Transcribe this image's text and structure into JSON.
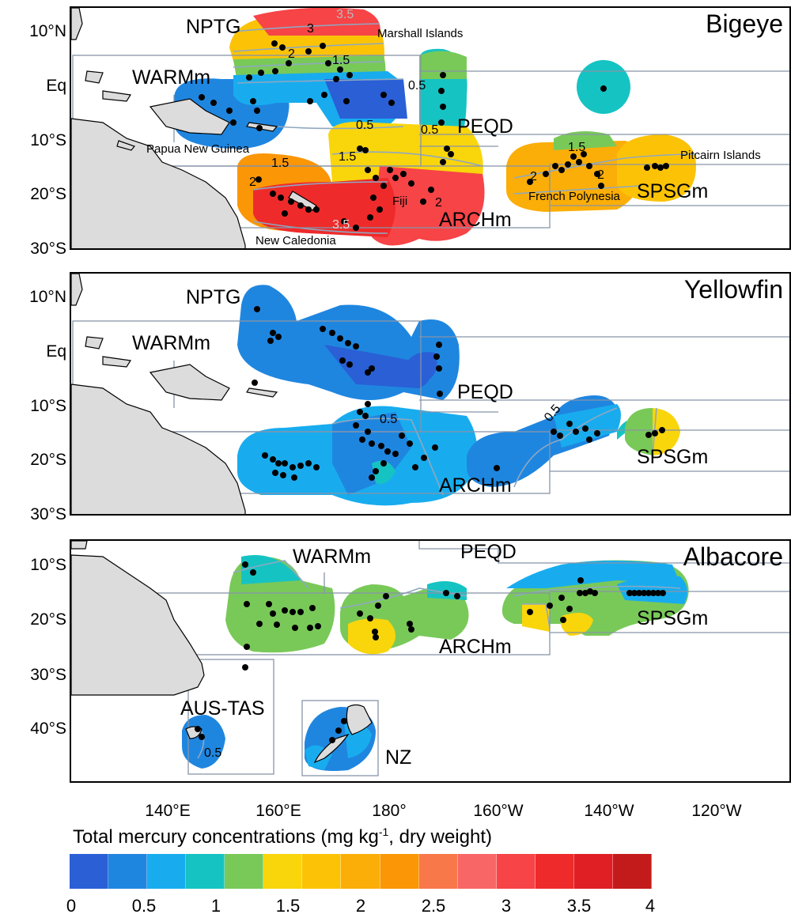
{
  "map": {
    "legend": {
      "title": "Total mercury concentrations (mg kg",
      "title_sup": "-1",
      "title_suffix": ", dry weight)",
      "ticks": [
        "0",
        "0.5",
        "1",
        "1.5",
        "2",
        "2.5",
        "3",
        "3.5",
        "4"
      ],
      "colors": [
        "#2a5fd6",
        "#1f86e0",
        "#18acef",
        "#16c3c3",
        "#79c959",
        "#f9d50c",
        "#fcc306",
        "#fbae08",
        "#fb9606",
        "#f9784a",
        "#f96666",
        "#f64447",
        "#ef2a2a",
        "#e01f24",
        "#c31b1b"
      ]
    },
    "x_ticks": [
      "140°E",
      "160°E",
      "180°",
      "160°W",
      "140°W",
      "120°W"
    ],
    "panels": [
      {
        "title": "Bigeye",
        "y_ticks": [
          "10°N",
          "Eq",
          "10°S",
          "20°S",
          "30°S"
        ],
        "regions": [
          "NPTG",
          "WARMm",
          "PEQD",
          "ARCHm",
          "SPSGm"
        ],
        "places": [
          "Marshall Islands",
          "Papua New Guinea",
          "Pitcairn Islands",
          "French Polynesia",
          "Fiji",
          "New Caledonia"
        ],
        "contour_labels": [
          "3.5",
          "3",
          "2",
          "1.5",
          "0.5",
          "0.5",
          "0.5",
          "1.5",
          "1.5",
          "1.5",
          "2",
          "2",
          "2",
          "2",
          "3.5"
        ]
      },
      {
        "title": "Yellowfin",
        "y_ticks": [
          "10°N",
          "Eq",
          "10°S",
          "20°S",
          "30°S"
        ],
        "regions": [
          "NPTG",
          "WARMm",
          "PEQD",
          "ARCHm",
          "SPSGm"
        ],
        "contour_labels": [
          "0.5",
          "0.5"
        ]
      },
      {
        "title": "Albacore",
        "y_ticks": [
          "10°S",
          "20°S",
          "30°S",
          "40°S"
        ],
        "regions": [
          "WARMm",
          "PEQD",
          "ARCHm",
          "SPSGm",
          "AUS-TAS",
          "NZ"
        ],
        "contour_labels": [
          "0.5"
        ]
      }
    ]
  }
}
